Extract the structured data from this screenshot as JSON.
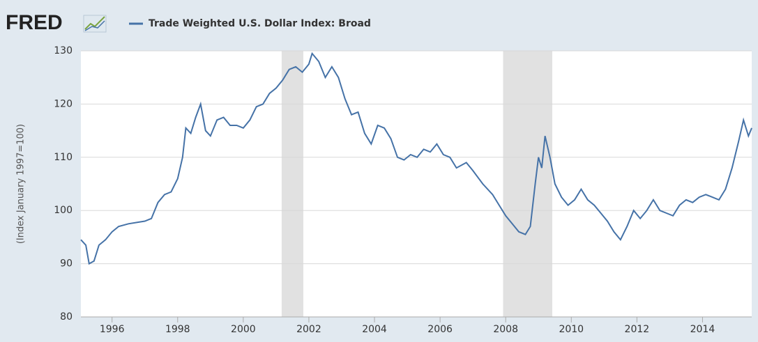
{
  "chart_data": {
    "type": "line",
    "logo": "FRED",
    "series": [
      {
        "name": "Trade Weighted U.S. Dollar Index: Broad",
        "color": "#4572a7",
        "x": [
          1995.05,
          1995.2,
          1995.3,
          1995.45,
          1995.6,
          1995.8,
          1996.0,
          1996.2,
          1996.5,
          1996.8,
          1997.0,
          1997.2,
          1997.4,
          1997.6,
          1997.8,
          1998.0,
          1998.15,
          1998.25,
          1998.4,
          1998.55,
          1998.7,
          1998.85,
          1999.0,
          1999.2,
          1999.4,
          1999.6,
          1999.8,
          2000.0,
          2000.2,
          2000.4,
          2000.6,
          2000.8,
          2001.0,
          2001.2,
          2001.4,
          2001.6,
          2001.8,
          2002.0,
          2002.1,
          2002.3,
          2002.5,
          2002.7,
          2002.9,
          2003.1,
          2003.3,
          2003.5,
          2003.7,
          2003.9,
          2004.1,
          2004.3,
          2004.5,
          2004.7,
          2004.9,
          2005.1,
          2005.3,
          2005.5,
          2005.7,
          2005.9,
          2006.1,
          2006.3,
          2006.5,
          2006.8,
          2007.0,
          2007.3,
          2007.6,
          2007.8,
          2008.0,
          2008.2,
          2008.4,
          2008.6,
          2008.75,
          2008.9,
          2009.0,
          2009.1,
          2009.2,
          2009.35,
          2009.5,
          2009.7,
          2009.9,
          2010.1,
          2010.3,
          2010.5,
          2010.7,
          2010.9,
          2011.1,
          2011.3,
          2011.5,
          2011.7,
          2011.9,
          2012.1,
          2012.3,
          2012.5,
          2012.7,
          2012.9,
          2013.1,
          2013.3,
          2013.5,
          2013.7,
          2013.9,
          2014.1,
          2014.3,
          2014.5,
          2014.7,
          2014.9,
          2015.1,
          2015.25,
          2015.4,
          2015.5
        ],
        "values": [
          94.5,
          93.5,
          90,
          90.5,
          93.5,
          94.5,
          96,
          97,
          97.5,
          97.8,
          98,
          98.5,
          101.5,
          103,
          103.5,
          106,
          110,
          115.5,
          114.5,
          117.5,
          120,
          115,
          114,
          117,
          117.5,
          116,
          116,
          115.5,
          117,
          119.5,
          120,
          122,
          123,
          124.5,
          126.5,
          127,
          126,
          127.5,
          129.5,
          128,
          125,
          127,
          125,
          121,
          118,
          118.5,
          114.5,
          112.5,
          116,
          115.5,
          113.5,
          110,
          109.5,
          110.5,
          110,
          111.5,
          111,
          112.5,
          110.5,
          110,
          108,
          109,
          107.5,
          105,
          103,
          101,
          99,
          97.5,
          96,
          95.5,
          97,
          105,
          110,
          108,
          114,
          110,
          105,
          102.5,
          101,
          102,
          104,
          102,
          101,
          99.5,
          98,
          96,
          94.5,
          97,
          100,
          98.5,
          100,
          102,
          100,
          99.5,
          99,
          101,
          102,
          101.5,
          102.5,
          103,
          102.5,
          102,
          104,
          108,
          113,
          117,
          114,
          115.5
        ]
      }
    ],
    "recessions": [
      [
        2001.17,
        2001.83
      ],
      [
        2007.92,
        2009.42
      ]
    ],
    "ylabel": "(Index January 1997=100)",
    "xlim": [
      1995.05,
      2015.5
    ],
    "xticks": [
      1996,
      1998,
      2000,
      2002,
      2004,
      2006,
      2008,
      2010,
      2012,
      2014
    ],
    "ylim": [
      80,
      130
    ],
    "yticks": [
      80,
      90,
      100,
      110,
      120,
      130
    ],
    "grid": true
  }
}
